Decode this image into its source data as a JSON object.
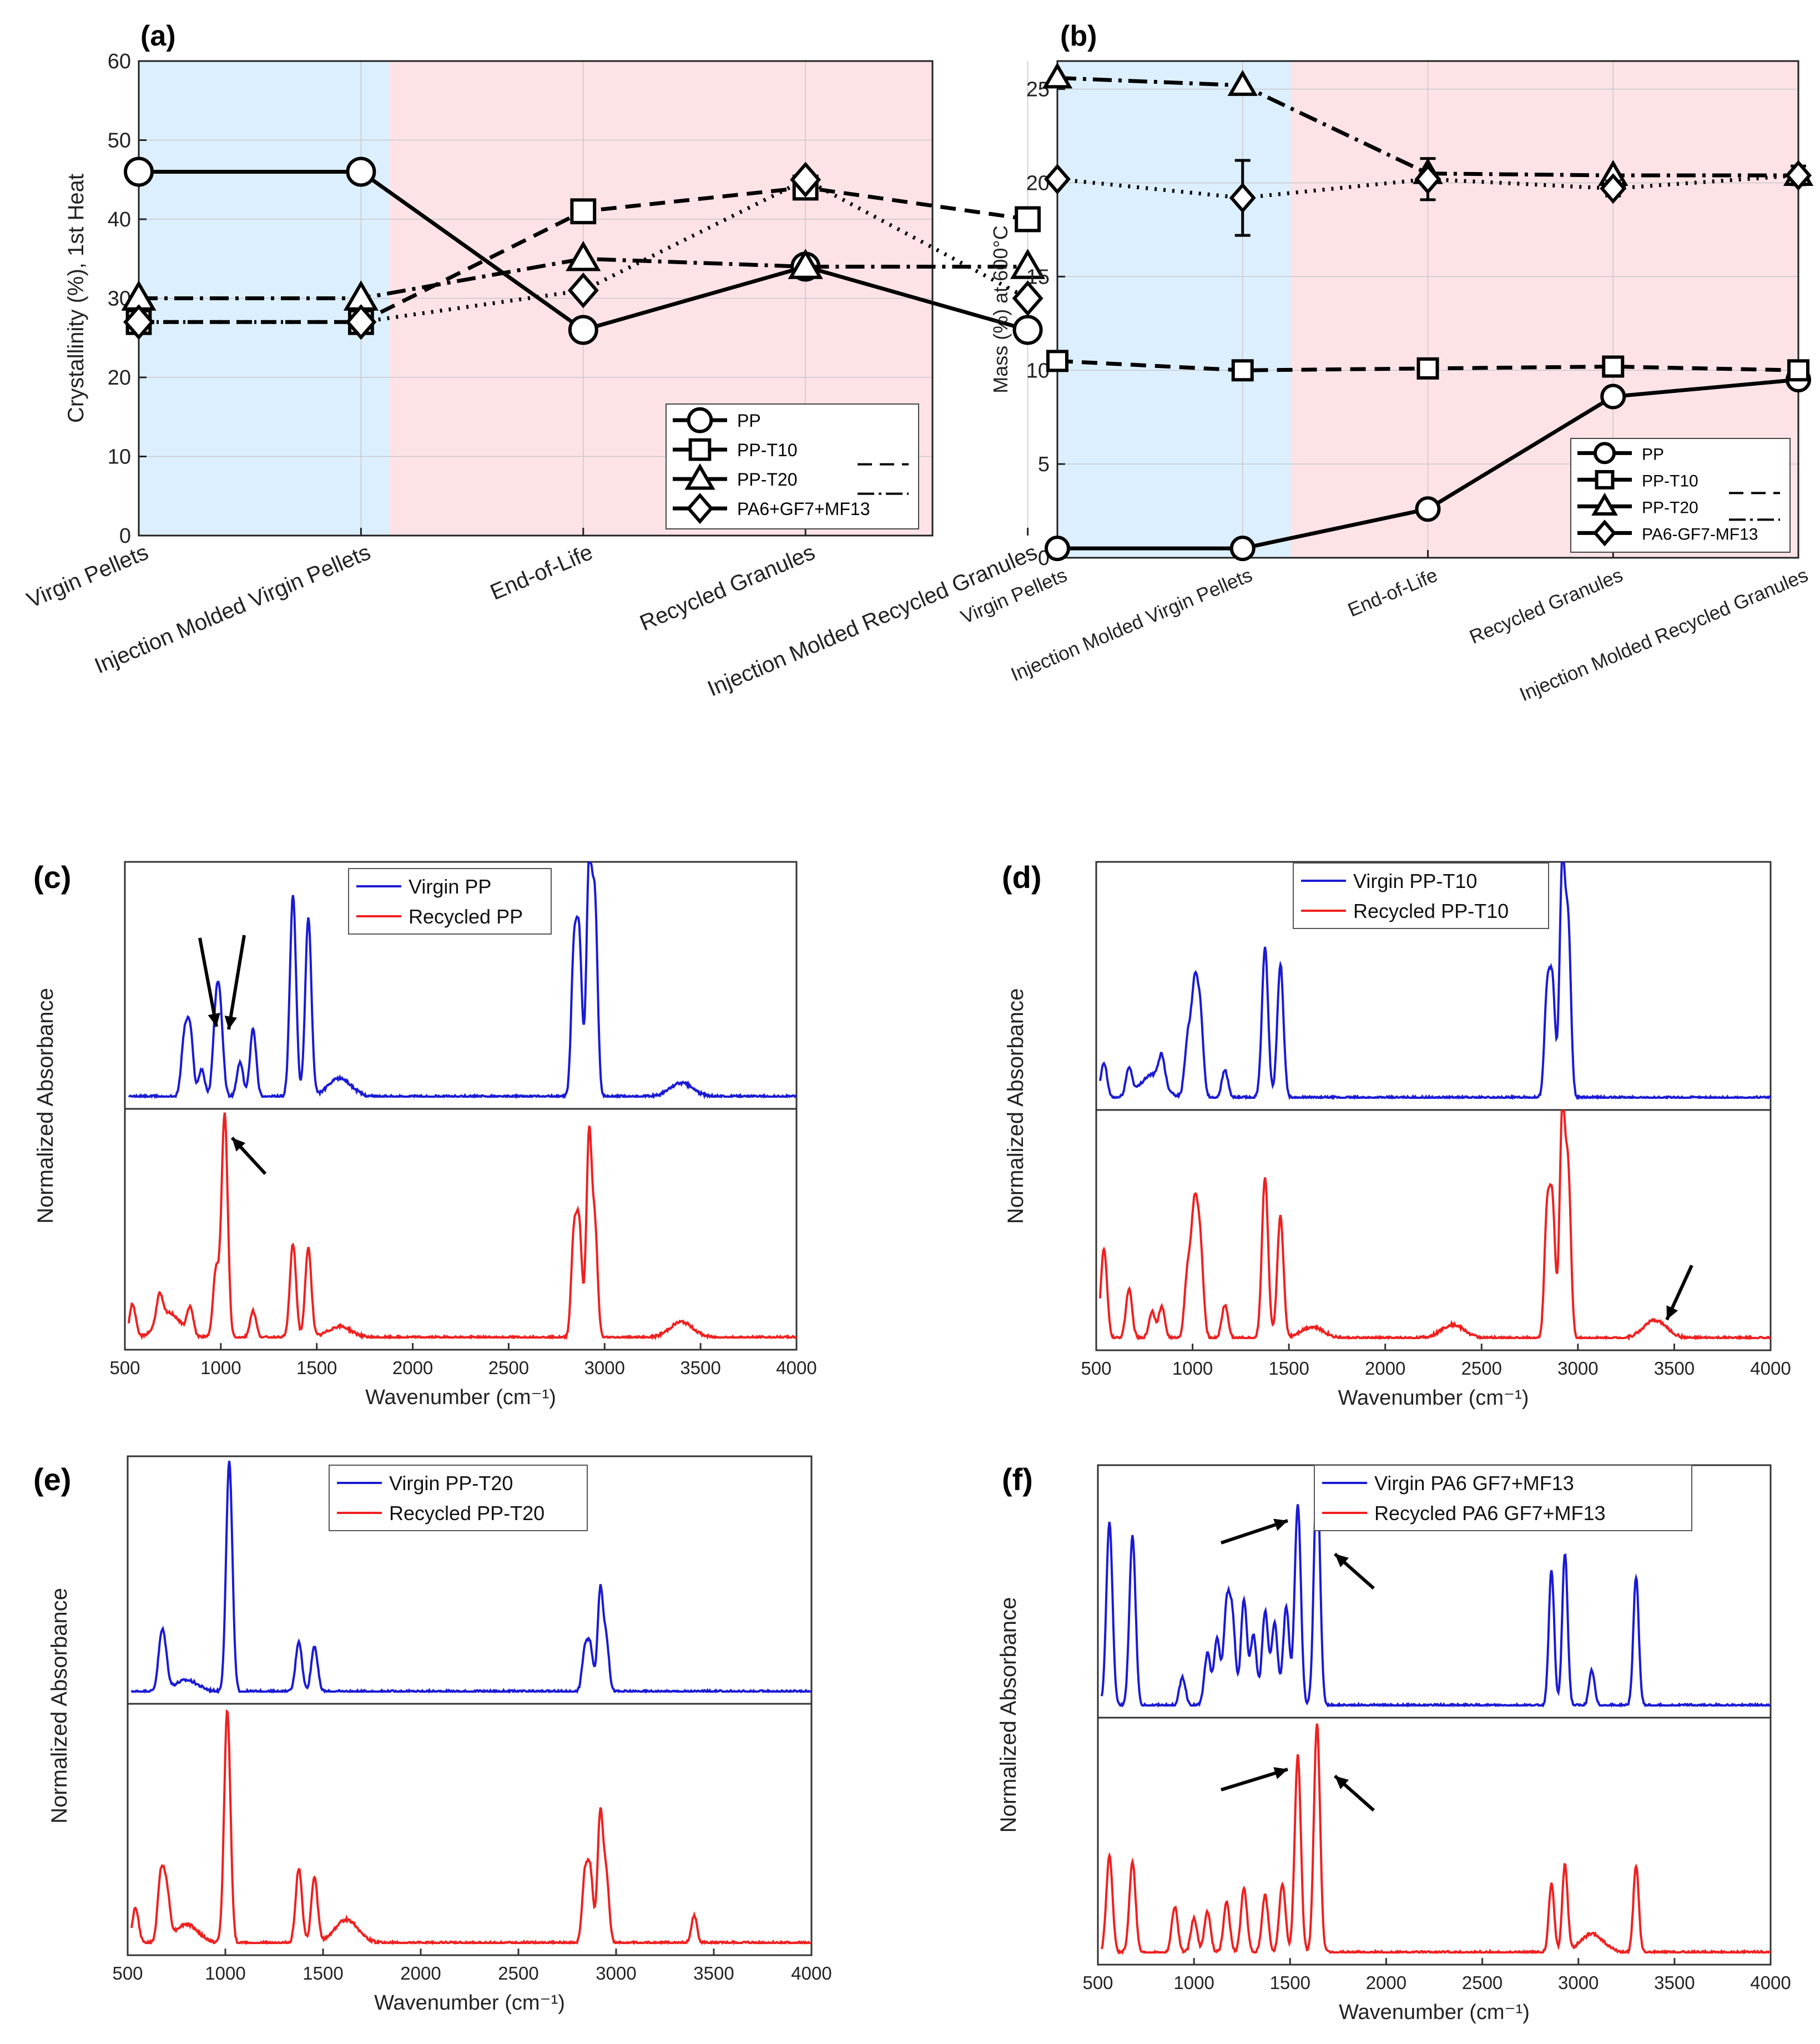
{
  "figure": {
    "stages": [
      "Virgin Pellets",
      "Injection Molded Virgin Pellets",
      "End-of-Life",
      "Recycled Granules",
      "Injection Molded Recycled Granules"
    ]
  },
  "colors": {
    "virgin_bg": "#dcefff",
    "recycled_bg": "#fde3e6",
    "virgin_line": "#1a1ad6",
    "recycled_line": "#f02020",
    "series": "#000000"
  },
  "chart_data": [
    {
      "panel": "(a)",
      "type": "line",
      "ylabel": "Crystallinity (%), 1st Heat",
      "ylim": [
        0,
        60
      ],
      "yticks": [
        "0",
        "10",
        "20",
        "30",
        "40",
        "50",
        "60"
      ],
      "categories": [
        "Virgin Pellets",
        "Injection Molded Virgin Pellets",
        "End-of-Life",
        "Recycled Granules",
        "Injection Molded Recycled Granules"
      ],
      "legend": [
        "PP",
        "PP-T10",
        "PP-T20",
        "PA6+GF7+MF13"
      ],
      "series": [
        {
          "name": "PP",
          "marker": "circle",
          "dash": "solid",
          "values": [
            46,
            46,
            26,
            34,
            26
          ]
        },
        {
          "name": "PP-T10",
          "marker": "square",
          "dash": "dashed",
          "values": [
            27,
            27,
            41,
            44,
            40
          ]
        },
        {
          "name": "PP-T20",
          "marker": "triangle",
          "dash": "dashdot",
          "values": [
            30,
            30,
            35,
            34,
            34
          ]
        },
        {
          "name": "PA6+GF7+MF13",
          "marker": "diamond",
          "dash": "dotted",
          "values": [
            27,
            27,
            31,
            45,
            30
          ]
        }
      ]
    },
    {
      "panel": "(b)",
      "type": "line",
      "ylabel": "Mass (%) at 600°C",
      "ylim": [
        0,
        26.5
      ],
      "yticks": [
        "0",
        "5",
        "10",
        "15",
        "20",
        "25"
      ],
      "categories": [
        "Virgin Pellets",
        "Injection Molded Virgin Pellets",
        "End-of-Life",
        "Recycled Granules",
        "Injection Molded Recycled Granules"
      ],
      "legend": [
        "PP",
        "PP-T10",
        "PP-T20",
        "PA6-GF7-MF13"
      ],
      "series": [
        {
          "name": "PP",
          "marker": "circle",
          "dash": "solid",
          "values": [
            0.5,
            0.5,
            2.6,
            8.6,
            9.5
          ]
        },
        {
          "name": "PP-T10",
          "marker": "square",
          "dash": "dashed",
          "values": [
            10.5,
            10.0,
            10.1,
            10.2,
            10.0
          ]
        },
        {
          "name": "PP-T20",
          "marker": "triangle",
          "dash": "dashdot",
          "values": [
            25.6,
            25.2,
            20.5,
            20.4,
            20.4
          ]
        },
        {
          "name": "PA6-GF7-MF13",
          "marker": "diamond",
          "dash": "dotted",
          "values": [
            20.2,
            19.2,
            20.2,
            19.7,
            20.4
          ],
          "error": [
            0,
            2.0,
            1.1,
            0.4,
            0.5
          ]
        }
      ]
    },
    {
      "panel": "(c)",
      "type": "line",
      "xlabel": "Wavenumber (cm⁻¹)",
      "ylabel": "Normalized Absorbance",
      "xlim": [
        500,
        4000
      ],
      "xticks": [
        "500",
        "1000",
        "1500",
        "2000",
        "2500",
        "3000",
        "3500",
        "4000"
      ],
      "series": [
        {
          "name": "Virgin PP",
          "peaks": [
            [
              810,
              0.25
            ],
            [
              840,
              0.28
            ],
            [
              900,
              0.12
            ],
            [
              975,
              0.35
            ],
            [
              998,
              0.3
            ],
            [
              1100,
              0.15
            ],
            [
              1168,
              0.3
            ],
            [
              1376,
              0.88
            ],
            [
              1456,
              0.78
            ],
            [
              1620,
              0.08
            ],
            [
              2840,
              0.62
            ],
            [
              2868,
              0.66
            ],
            [
              2919,
              1.0
            ],
            [
              2950,
              0.82
            ],
            [
              3400,
              0.06
            ]
          ]
        },
        {
          "name": "Recycled PP",
          "peaks": [
            [
              540,
              0.15
            ],
            [
              680,
              0.12
            ],
            [
              730,
              0.11
            ],
            [
              840,
              0.12
            ],
            [
              975,
              0.3
            ],
            [
              1020,
              1.0
            ],
            [
              1168,
              0.12
            ],
            [
              1376,
              0.42
            ],
            [
              1456,
              0.4
            ],
            [
              1620,
              0.05
            ],
            [
              2840,
              0.45
            ],
            [
              2868,
              0.48
            ],
            [
              2919,
              0.9
            ],
            [
              2950,
              0.47
            ],
            [
              3400,
              0.07
            ]
          ]
        }
      ]
    },
    {
      "panel": "(d)",
      "type": "line",
      "xlabel": "Wavenumber (cm⁻¹)",
      "ylabel": "Normalized Absorbance",
      "xlim": [
        500,
        4000
      ],
      "xticks": [
        "500",
        "1000",
        "1500",
        "2000",
        "2500",
        "3000",
        "3500",
        "4000"
      ],
      "series": [
        {
          "name": "Virgin PP-T10",
          "peaks": [
            [
              540,
              0.15
            ],
            [
              670,
              0.12
            ],
            [
              790,
              0.1
            ],
            [
              840,
              0.12
            ],
            [
              975,
              0.25
            ],
            [
              1010,
              0.45
            ],
            [
              1040,
              0.35
            ],
            [
              1168,
              0.12
            ],
            [
              1376,
              0.65
            ],
            [
              1456,
              0.58
            ],
            [
              2840,
              0.45
            ],
            [
              2868,
              0.48
            ],
            [
              2919,
              1.0
            ],
            [
              2950,
              0.72
            ]
          ]
        },
        {
          "name": "Recycled PP-T10",
          "peaks": [
            [
              540,
              0.4
            ],
            [
              670,
              0.22
            ],
            [
              790,
              0.12
            ],
            [
              840,
              0.14
            ],
            [
              975,
              0.3
            ],
            [
              1010,
              0.55
            ],
            [
              1040,
              0.4
            ],
            [
              1168,
              0.15
            ],
            [
              1376,
              0.72
            ],
            [
              1456,
              0.55
            ],
            [
              1620,
              0.05
            ],
            [
              2350,
              0.06
            ],
            [
              2840,
              0.55
            ],
            [
              2868,
              0.58
            ],
            [
              2919,
              1.0
            ],
            [
              2950,
              0.72
            ],
            [
              3400,
              0.08
            ]
          ]
        }
      ]
    },
    {
      "panel": "(e)",
      "type": "line",
      "xlabel": "Wavenumber (cm⁻¹)",
      "ylabel": "Normalized Absorbance",
      "xlim": [
        500,
        4000
      ],
      "xticks": [
        "500",
        "1000",
        "1500",
        "2000",
        "2500",
        "3000",
        "3500",
        "4000"
      ],
      "series": [
        {
          "name": "Virgin PP-T20",
          "peaks": [
            [
              670,
              0.18
            ],
            [
              690,
              0.14
            ],
            [
              800,
              0.05
            ],
            [
              1020,
              1.0
            ],
            [
              1376,
              0.22
            ],
            [
              1456,
              0.2
            ],
            [
              2840,
              0.18
            ],
            [
              2868,
              0.19
            ],
            [
              2919,
              0.44
            ],
            [
              2950,
              0.22
            ]
          ]
        },
        {
          "name": "Recycled PP-T20",
          "peaks": [
            [
              540,
              0.15
            ],
            [
              670,
              0.28
            ],
            [
              700,
              0.2
            ],
            [
              800,
              0.08
            ],
            [
              1010,
              1.0
            ],
            [
              1376,
              0.32
            ],
            [
              1456,
              0.28
            ],
            [
              1620,
              0.1
            ],
            [
              2840,
              0.28
            ],
            [
              2868,
              0.3
            ],
            [
              2919,
              0.55
            ],
            [
              2950,
              0.28
            ],
            [
              3400,
              0.12
            ]
          ]
        }
      ]
    },
    {
      "panel": "(f)",
      "type": "line",
      "xlabel": "Wavenumber (cm⁻¹)",
      "ylabel": "Normalized Absorbance",
      "xlim": [
        500,
        4000
      ],
      "xticks": [
        "500",
        "1000",
        "1500",
        "2000",
        "2500",
        "3000",
        "3500",
        "4000"
      ],
      "series": [
        {
          "name": "Virgin PA6 GF7+MF13",
          "peaks": [
            [
              560,
              0.78
            ],
            [
              680,
              0.72
            ],
            [
              940,
              0.12
            ],
            [
              1070,
              0.22
            ],
            [
              1120,
              0.28
            ],
            [
              1170,
              0.4
            ],
            [
              1200,
              0.35
            ],
            [
              1260,
              0.45
            ],
            [
              1310,
              0.3
            ],
            [
              1370,
              0.4
            ],
            [
              1420,
              0.35
            ],
            [
              1480,
              0.42
            ],
            [
              1540,
              0.86
            ],
            [
              1640,
              1.0
            ],
            [
              2860,
              0.58
            ],
            [
              2930,
              0.65
            ],
            [
              3070,
              0.15
            ],
            [
              3300,
              0.55
            ]
          ]
        },
        {
          "name": "Recycled PA6 GF7+MF13",
          "peaks": [
            [
              560,
              0.42
            ],
            [
              680,
              0.4
            ],
            [
              900,
              0.2
            ],
            [
              1000,
              0.15
            ],
            [
              1070,
              0.18
            ],
            [
              1170,
              0.22
            ],
            [
              1260,
              0.28
            ],
            [
              1370,
              0.25
            ],
            [
              1460,
              0.3
            ],
            [
              1540,
              0.86
            ],
            [
              1640,
              1.0
            ],
            [
              2860,
              0.3
            ],
            [
              2930,
              0.38
            ],
            [
              3070,
              0.08
            ],
            [
              3300,
              0.38
            ]
          ]
        }
      ]
    }
  ]
}
